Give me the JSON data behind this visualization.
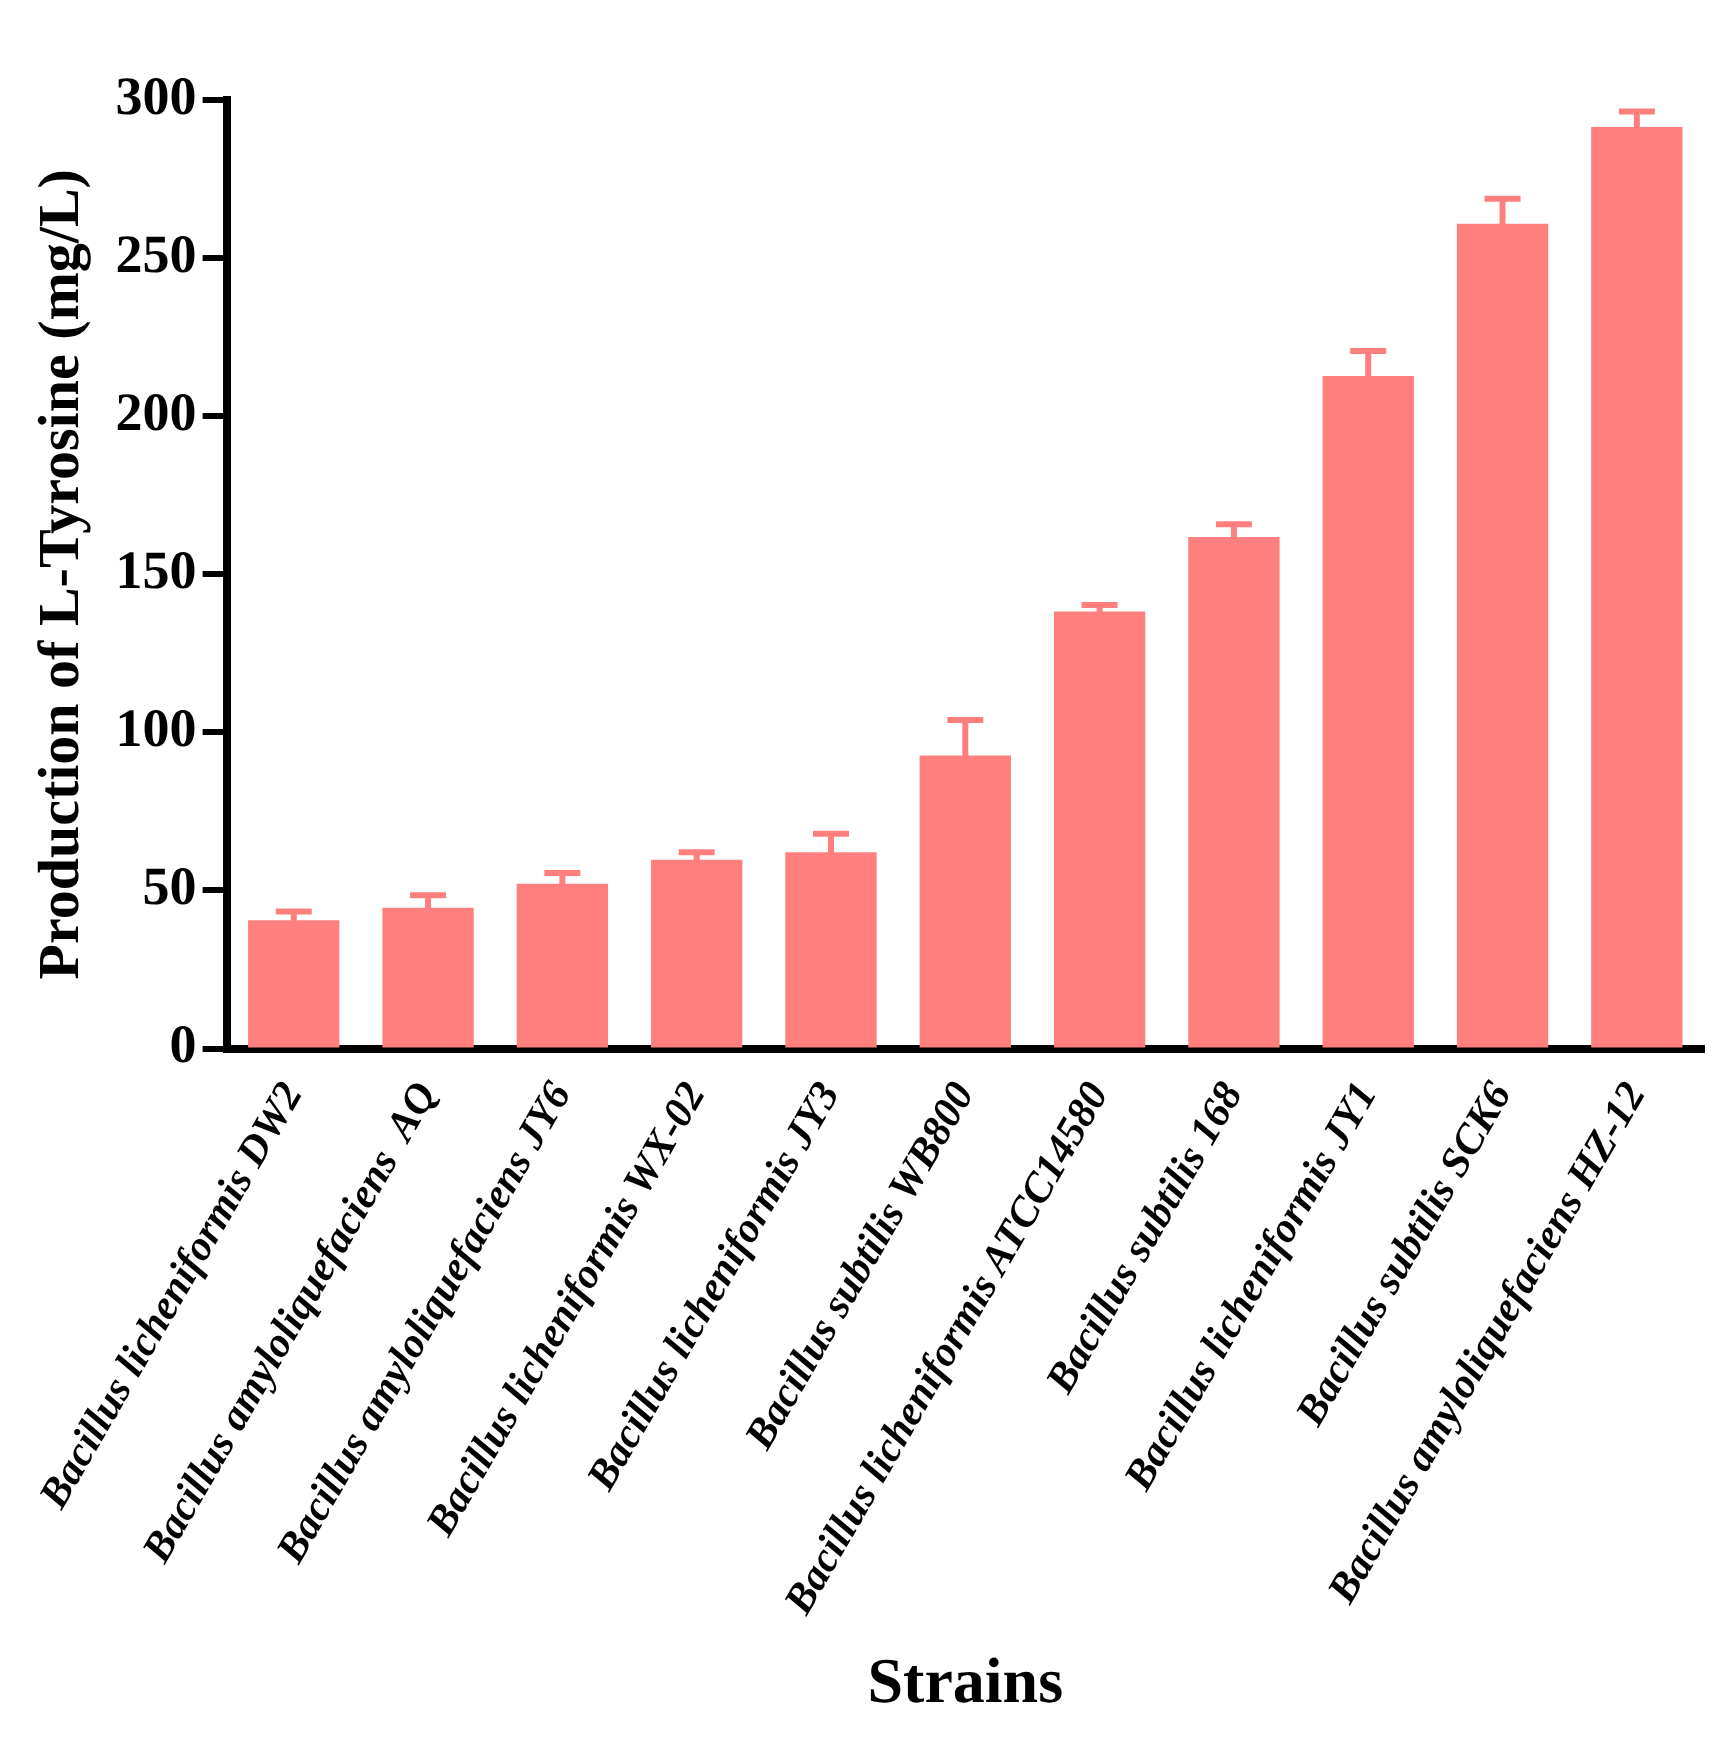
{
  "chart_data": {
    "type": "bar",
    "xlabel": "Strains",
    "ylabel": "Production of L-Tyrosine (mg/L)",
    "categories": [
      "Bacillus licheniformis DW2",
      "Bacillus amyloliquefaciens  AQ",
      "Bacillus amyloliquefaciens JY6",
      "Bacillus licheniformis WX-02",
      "Bacillus licheniformis JY3",
      "Bacillus subtilis WB800",
      "Bacillus licheniformis ATCC14580",
      "Bacillus subtilis 168",
      "Bacillus licheniformis JY1",
      "Bacillus subtilis SCK6",
      "Bacillus amyloliquefaciens HZ-12"
    ],
    "values": [
      40.6,
      44.5,
      52.1,
      59.7,
      62.1,
      92.7,
      138.2,
      161.8,
      212.7,
      260.9,
      291.5
    ],
    "errors": [
      2.7,
      4,
      3.4,
      2.4,
      5.8,
      11.2,
      2.1,
      4,
      7.9,
      7.9,
      4.9
    ],
    "color": "#ff7f7f",
    "ylim": [
      0,
      300
    ],
    "yticks": [
      0,
      50,
      100,
      150,
      200,
      250,
      300
    ],
    "grid": false,
    "legend": false
  }
}
